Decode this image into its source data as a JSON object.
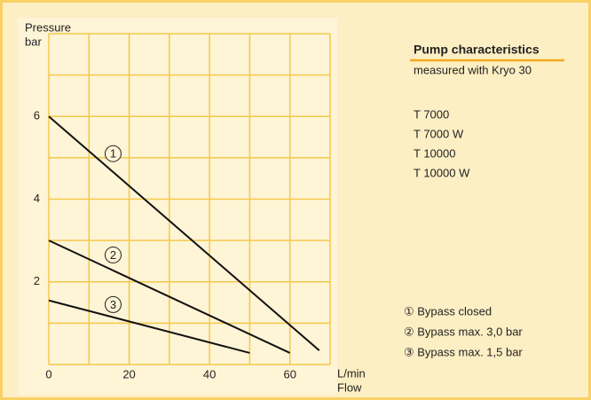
{
  "chart_data": {
    "type": "line",
    "y_label": "Pressure",
    "y_unit": "bar",
    "x_unit": "L/min",
    "x_label": "Flow",
    "xlim": [
      0,
      70
    ],
    "ylim": [
      0,
      8
    ],
    "xticks": [
      0,
      20,
      40,
      60
    ],
    "yticks": [
      2,
      4,
      6
    ],
    "xgrid": [
      0,
      10,
      20,
      30,
      40,
      50,
      60,
      70
    ],
    "ygrid": [
      0,
      1,
      2,
      3,
      4,
      5,
      6,
      7,
      8
    ],
    "series": [
      {
        "name": "① Bypass closed",
        "marker": "1",
        "color": "#111111",
        "x": [
          0,
          67.3
        ],
        "values": [
          6,
          0.34
        ],
        "label_at": [
          16,
          5.1
        ]
      },
      {
        "name": "② Bypass max. 3,0 bar",
        "marker": "2",
        "color": "#111111",
        "x": [
          0,
          60
        ],
        "values": [
          3,
          0.28
        ],
        "label_at": [
          16,
          2.65
        ]
      },
      {
        "name": "③ Bypass max. 1,5 bar",
        "marker": "3",
        "color": "#111111",
        "x": [
          0,
          50
        ],
        "values": [
          1.55,
          0.28
        ],
        "label_at": [
          16,
          1.45
        ]
      }
    ]
  },
  "info": {
    "title": "Pump characteristics",
    "subtitle": "measured with Kryo 30",
    "models": [
      "T 7000",
      "T 7000 W",
      "T 10000",
      "T 10000 W"
    ]
  }
}
